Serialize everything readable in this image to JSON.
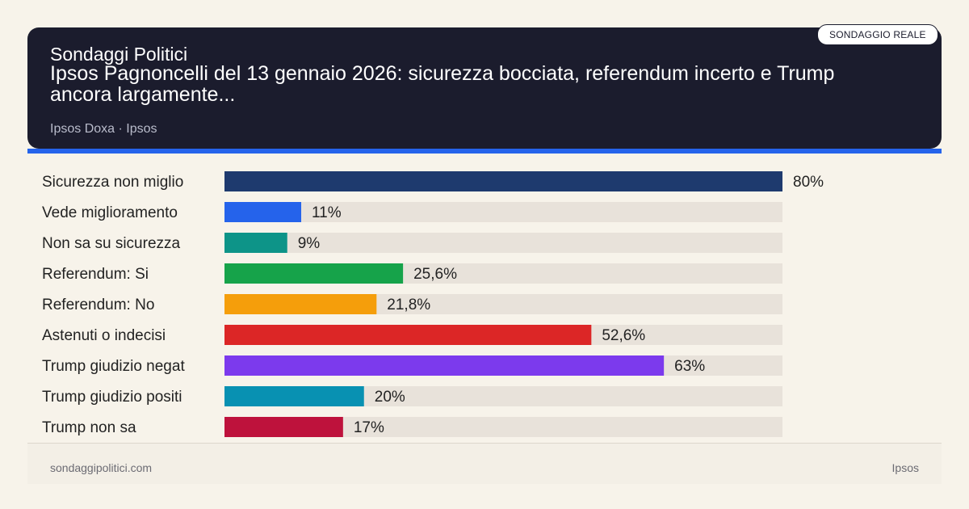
{
  "header": {
    "brand": "Sondaggi Politici",
    "title": "Ipsos Pagnoncelli del 13 gennaio 2026: sicurezza bocciata, referendum incerto e Trump ancora largamente...",
    "source": "Ipsos Doxa · Ipsos",
    "badge": "SONDAGGIO REALE"
  },
  "chart_data": {
    "type": "bar",
    "orientation": "horizontal",
    "categories": [
      "Sicurezza non miglio",
      "Vede miglioramento",
      "Non sa su sicurezza",
      "Referendum: Si",
      "Referendum: No",
      "Astenuti o indecisi",
      "Trump giudizio negat",
      "Trump giudizio positi",
      "Trump non sa"
    ],
    "values": [
      80,
      11,
      9,
      25.6,
      21.8,
      52.6,
      63,
      20,
      17
    ],
    "value_labels": [
      "80%",
      "11%",
      "9%",
      "25,6%",
      "21,8%",
      "52,6%",
      "63%",
      "20%",
      "17%"
    ],
    "colors": [
      "#1e3a6e",
      "#2563eb",
      "#0d9488",
      "#16a34a",
      "#f59e0b",
      "#dc2626",
      "#7c3aed",
      "#0891b2",
      "#be123c"
    ],
    "track_color": "#e8e2da",
    "xlim": [
      0,
      80
    ],
    "title": "",
    "xlabel": "",
    "ylabel": ""
  },
  "footer": {
    "site": "sondaggipolitici.com",
    "source": "Ipsos"
  }
}
